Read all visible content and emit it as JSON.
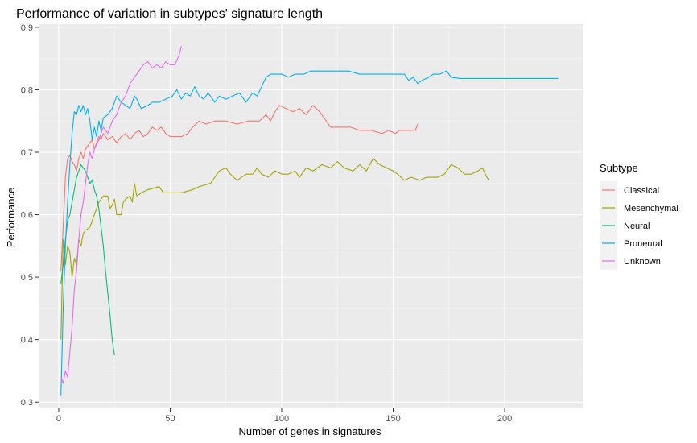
{
  "chart_data": {
    "type": "line",
    "title": "Performance of variation in subtypes' signature length",
    "xlabel": "Number of genes in signatures",
    "ylabel": "Performance",
    "xlim": [
      -9,
      235
    ],
    "ylim": [
      0.29,
      0.905
    ],
    "x_ticks": [
      0,
      50,
      100,
      150,
      200
    ],
    "y_ticks": [
      0.3,
      0.4,
      0.5,
      0.6,
      0.7,
      0.8,
      0.9
    ],
    "grid": true,
    "legend": {
      "title": "Subtype",
      "position": "right"
    },
    "series": [
      {
        "name": "Classical",
        "color": "#F8766D",
        "points": [
          [
            1,
            0.51
          ],
          [
            2,
            0.58
          ],
          [
            3,
            0.66
          ],
          [
            4,
            0.69
          ],
          [
            5,
            0.695
          ],
          [
            6,
            0.685
          ],
          [
            7,
            0.68
          ],
          [
            8,
            0.67
          ],
          [
            9,
            0.69
          ],
          [
            10,
            0.7
          ],
          [
            11,
            0.69
          ],
          [
            12,
            0.705
          ],
          [
            13,
            0.71
          ],
          [
            14,
            0.715
          ],
          [
            15,
            0.72
          ],
          [
            16,
            0.705
          ],
          [
            17,
            0.715
          ],
          [
            18,
            0.725
          ],
          [
            19,
            0.72
          ],
          [
            20,
            0.73
          ],
          [
            22,
            0.72
          ],
          [
            24,
            0.725
          ],
          [
            26,
            0.715
          ],
          [
            28,
            0.725
          ],
          [
            30,
            0.73
          ],
          [
            32,
            0.72
          ],
          [
            34,
            0.73
          ],
          [
            36,
            0.735
          ],
          [
            38,
            0.725
          ],
          [
            40,
            0.73
          ],
          [
            42,
            0.74
          ],
          [
            44,
            0.735
          ],
          [
            46,
            0.74
          ],
          [
            48,
            0.73
          ],
          [
            50,
            0.725
          ],
          [
            55,
            0.725
          ],
          [
            58,
            0.73
          ],
          [
            60,
            0.74
          ],
          [
            63,
            0.75
          ],
          [
            66,
            0.745
          ],
          [
            70,
            0.75
          ],
          [
            75,
            0.75
          ],
          [
            80,
            0.745
          ],
          [
            85,
            0.75
          ],
          [
            90,
            0.75
          ],
          [
            93,
            0.76
          ],
          [
            95,
            0.75
          ],
          [
            97,
            0.765
          ],
          [
            99,
            0.775
          ],
          [
            102,
            0.77
          ],
          [
            105,
            0.765
          ],
          [
            108,
            0.77
          ],
          [
            111,
            0.76
          ],
          [
            114,
            0.775
          ],
          [
            117,
            0.765
          ],
          [
            119,
            0.755
          ],
          [
            122,
            0.74
          ],
          [
            126,
            0.74
          ],
          [
            131,
            0.74
          ],
          [
            135,
            0.735
          ],
          [
            140,
            0.735
          ],
          [
            145,
            0.73
          ],
          [
            148,
            0.735
          ],
          [
            151,
            0.73
          ],
          [
            153,
            0.735
          ],
          [
            157,
            0.735
          ],
          [
            160,
            0.735
          ],
          [
            161,
            0.745
          ]
        ]
      },
      {
        "name": "Mesenchymal",
        "color": "#A3A500",
        "points": [
          [
            1,
            0.4
          ],
          [
            2,
            0.56
          ],
          [
            3,
            0.52
          ],
          [
            4,
            0.55
          ],
          [
            5,
            0.54
          ],
          [
            6,
            0.5
          ],
          [
            7,
            0.53
          ],
          [
            8,
            0.52
          ],
          [
            9,
            0.56
          ],
          [
            10,
            0.55
          ],
          [
            11,
            0.57
          ],
          [
            12,
            0.575
          ],
          [
            14,
            0.58
          ],
          [
            16,
            0.6
          ],
          [
            18,
            0.62
          ],
          [
            20,
            0.63
          ],
          [
            22,
            0.63
          ],
          [
            23,
            0.61
          ],
          [
            24,
            0.615
          ],
          [
            25,
            0.625
          ],
          [
            26,
            0.6
          ],
          [
            28,
            0.6
          ],
          [
            29,
            0.62
          ],
          [
            30,
            0.625
          ],
          [
            32,
            0.63
          ],
          [
            33,
            0.62
          ],
          [
            34,
            0.65
          ],
          [
            35,
            0.63
          ],
          [
            37,
            0.635
          ],
          [
            40,
            0.64
          ],
          [
            45,
            0.645
          ],
          [
            47,
            0.635
          ],
          [
            50,
            0.635
          ],
          [
            55,
            0.635
          ],
          [
            60,
            0.64
          ],
          [
            63,
            0.645
          ],
          [
            68,
            0.65
          ],
          [
            70,
            0.66
          ],
          [
            72,
            0.67
          ],
          [
            75,
            0.675
          ],
          [
            77,
            0.665
          ],
          [
            80,
            0.655
          ],
          [
            84,
            0.665
          ],
          [
            87,
            0.665
          ],
          [
            89,
            0.675
          ],
          [
            91,
            0.665
          ],
          [
            94,
            0.66
          ],
          [
            97,
            0.67
          ],
          [
            100,
            0.665
          ],
          [
            103,
            0.665
          ],
          [
            106,
            0.67
          ],
          [
            108,
            0.66
          ],
          [
            111,
            0.675
          ],
          [
            114,
            0.67
          ],
          [
            118,
            0.68
          ],
          [
            122,
            0.675
          ],
          [
            125,
            0.685
          ],
          [
            128,
            0.675
          ],
          [
            132,
            0.67
          ],
          [
            135,
            0.68
          ],
          [
            138,
            0.67
          ],
          [
            141,
            0.69
          ],
          [
            144,
            0.68
          ],
          [
            147,
            0.675
          ],
          [
            150,
            0.67
          ],
          [
            152,
            0.665
          ],
          [
            155,
            0.655
          ],
          [
            158,
            0.66
          ],
          [
            162,
            0.655
          ],
          [
            165,
            0.66
          ],
          [
            170,
            0.66
          ],
          [
            173,
            0.665
          ],
          [
            176,
            0.68
          ],
          [
            179,
            0.675
          ],
          [
            182,
            0.665
          ],
          [
            185,
            0.665
          ],
          [
            188,
            0.67
          ],
          [
            190,
            0.675
          ],
          [
            192,
            0.66
          ],
          [
            193,
            0.655
          ]
        ]
      },
      {
        "name": "Neural",
        "color": "#00BF7D",
        "points": [
          [
            1,
            0.49
          ],
          [
            2,
            0.52
          ],
          [
            3,
            0.56
          ],
          [
            4,
            0.59
          ],
          [
            5,
            0.6
          ],
          [
            6,
            0.62
          ],
          [
            7,
            0.64
          ],
          [
            8,
            0.66
          ],
          [
            9,
            0.67
          ],
          [
            10,
            0.68
          ],
          [
            11,
            0.675
          ],
          [
            12,
            0.67
          ],
          [
            13,
            0.66
          ],
          [
            14,
            0.65
          ],
          [
            15,
            0.655
          ],
          [
            16,
            0.64
          ],
          [
            17,
            0.63
          ],
          [
            18,
            0.61
          ],
          [
            19,
            0.58
          ],
          [
            20,
            0.55
          ],
          [
            21,
            0.51
          ],
          [
            22,
            0.475
          ],
          [
            23,
            0.44
          ],
          [
            24,
            0.4
          ],
          [
            25,
            0.375
          ]
        ]
      },
      {
        "name": "Proneural",
        "color": "#00B0F6",
        "points": [
          [
            1,
            0.31
          ],
          [
            2,
            0.45
          ],
          [
            3,
            0.55
          ],
          [
            4,
            0.62
          ],
          [
            5,
            0.68
          ],
          [
            6,
            0.73
          ],
          [
            7,
            0.765
          ],
          [
            8,
            0.76
          ],
          [
            9,
            0.775
          ],
          [
            10,
            0.765
          ],
          [
            11,
            0.775
          ],
          [
            12,
            0.76
          ],
          [
            13,
            0.77
          ],
          [
            14,
            0.75
          ],
          [
            15,
            0.72
          ],
          [
            16,
            0.74
          ],
          [
            17,
            0.725
          ],
          [
            18,
            0.75
          ],
          [
            19,
            0.735
          ],
          [
            20,
            0.755
          ],
          [
            22,
            0.76
          ],
          [
            24,
            0.77
          ],
          [
            26,
            0.79
          ],
          [
            28,
            0.78
          ],
          [
            30,
            0.775
          ],
          [
            32,
            0.77
          ],
          [
            34,
            0.79
          ],
          [
            35,
            0.785
          ],
          [
            37,
            0.77
          ],
          [
            40,
            0.775
          ],
          [
            42,
            0.78
          ],
          [
            45,
            0.78
          ],
          [
            48,
            0.785
          ],
          [
            51,
            0.79
          ],
          [
            53,
            0.8
          ],
          [
            55,
            0.785
          ],
          [
            57,
            0.795
          ],
          [
            59,
            0.79
          ],
          [
            61,
            0.805
          ],
          [
            63,
            0.79
          ],
          [
            65,
            0.785
          ],
          [
            67,
            0.795
          ],
          [
            70,
            0.78
          ],
          [
            72,
            0.79
          ],
          [
            75,
            0.785
          ],
          [
            78,
            0.79
          ],
          [
            81,
            0.795
          ],
          [
            84,
            0.78
          ],
          [
            87,
            0.795
          ],
          [
            89,
            0.79
          ],
          [
            91,
            0.805
          ],
          [
            93,
            0.82
          ],
          [
            95,
            0.825
          ],
          [
            100,
            0.825
          ],
          [
            103,
            0.82
          ],
          [
            106,
            0.825
          ],
          [
            110,
            0.825
          ],
          [
            113,
            0.83
          ],
          [
            118,
            0.83
          ],
          [
            125,
            0.83
          ],
          [
            130,
            0.83
          ],
          [
            135,
            0.825
          ],
          [
            140,
            0.825
          ],
          [
            145,
            0.825
          ],
          [
            150,
            0.825
          ],
          [
            155,
            0.825
          ],
          [
            157,
            0.815
          ],
          [
            159,
            0.82
          ],
          [
            161,
            0.81
          ],
          [
            163,
            0.815
          ],
          [
            166,
            0.82
          ],
          [
            168,
            0.825
          ],
          [
            171,
            0.825
          ],
          [
            174,
            0.83
          ],
          [
            176,
            0.82
          ],
          [
            180,
            0.818
          ],
          [
            190,
            0.818
          ],
          [
            200,
            0.818
          ],
          [
            210,
            0.818
          ],
          [
            224,
            0.818
          ]
        ]
      },
      {
        "name": "Unknown",
        "color": "#E76BF3",
        "points": [
          [
            1,
            0.34
          ],
          [
            2,
            0.33
          ],
          [
            3,
            0.35
          ],
          [
            4,
            0.34
          ],
          [
            5,
            0.38
          ],
          [
            6,
            0.42
          ],
          [
            7,
            0.48
          ],
          [
            8,
            0.51
          ],
          [
            9,
            0.56
          ],
          [
            10,
            0.6
          ],
          [
            11,
            0.62
          ],
          [
            12,
            0.65
          ],
          [
            13,
            0.68
          ],
          [
            14,
            0.7
          ],
          [
            15,
            0.69
          ],
          [
            16,
            0.705
          ],
          [
            18,
            0.72
          ],
          [
            20,
            0.74
          ],
          [
            22,
            0.73
          ],
          [
            24,
            0.75
          ],
          [
            26,
            0.76
          ],
          [
            28,
            0.78
          ],
          [
            30,
            0.79
          ],
          [
            32,
            0.81
          ],
          [
            34,
            0.82
          ],
          [
            36,
            0.83
          ],
          [
            38,
            0.84
          ],
          [
            40,
            0.845
          ],
          [
            42,
            0.835
          ],
          [
            44,
            0.84
          ],
          [
            46,
            0.835
          ],
          [
            48,
            0.845
          ],
          [
            50,
            0.84
          ],
          [
            52,
            0.84
          ],
          [
            54,
            0.855
          ],
          [
            55,
            0.87
          ]
        ]
      }
    ]
  }
}
